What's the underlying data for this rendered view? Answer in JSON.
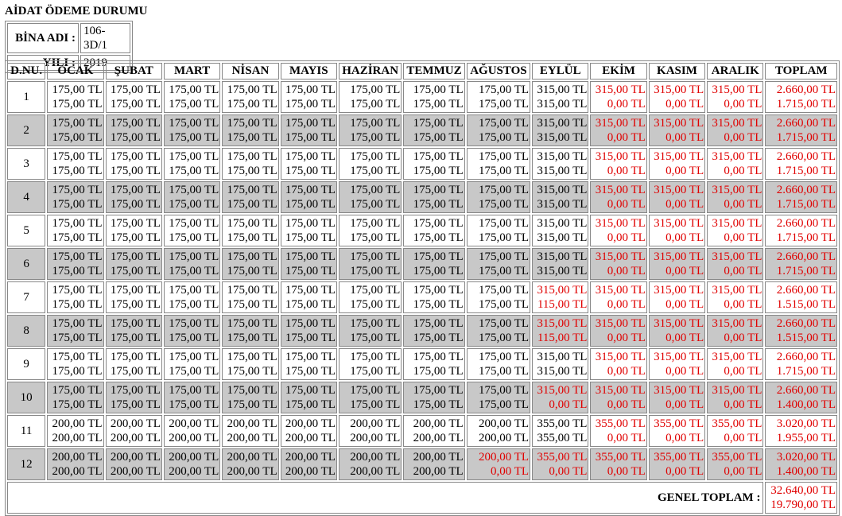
{
  "header": {
    "title": "AİDAT ÖDEME DURUMU",
    "building_label": "BİNA ADI :",
    "building": "106-3D/1",
    "year_label": "YILI :",
    "year": "2019"
  },
  "table": {
    "columns": [
      "D.NU.",
      "OCAK",
      "ŞUBAT",
      "MART",
      "NİSAN",
      "MAYIS",
      "HAZİRAN",
      "TEMMUZ",
      "AĞUSTOS",
      "EYLÜL",
      "EKİM",
      "KASIM",
      "ARALIK",
      "TOPLAM"
    ],
    "rows": [
      {
        "no": "1",
        "cells": [
          [
            "175,00 TL",
            "175,00 TL"
          ],
          [
            "175,00 TL",
            "175,00 TL"
          ],
          [
            "175,00 TL",
            "175,00 TL"
          ],
          [
            "175,00 TL",
            "175,00 TL"
          ],
          [
            "175,00 TL",
            "175,00 TL"
          ],
          [
            "175,00 TL",
            "175,00 TL"
          ],
          [
            "175,00 TL",
            "175,00 TL"
          ],
          [
            "175,00 TL",
            "175,00 TL"
          ],
          [
            "315,00 TL",
            "315,00 TL"
          ],
          [
            "315,00 TL",
            "0,00 TL"
          ],
          [
            "315,00 TL",
            "0,00 TL"
          ],
          [
            "315,00 TL",
            "0,00 TL"
          ],
          [
            "2.660,00 TL",
            "1.715,00 TL"
          ]
        ]
      },
      {
        "no": "2",
        "cells": [
          [
            "175,00 TL",
            "175,00 TL"
          ],
          [
            "175,00 TL",
            "175,00 TL"
          ],
          [
            "175,00 TL",
            "175,00 TL"
          ],
          [
            "175,00 TL",
            "175,00 TL"
          ],
          [
            "175,00 TL",
            "175,00 TL"
          ],
          [
            "175,00 TL",
            "175,00 TL"
          ],
          [
            "175,00 TL",
            "175,00 TL"
          ],
          [
            "175,00 TL",
            "175,00 TL"
          ],
          [
            "315,00 TL",
            "315,00 TL"
          ],
          [
            "315,00 TL",
            "0,00 TL"
          ],
          [
            "315,00 TL",
            "0,00 TL"
          ],
          [
            "315,00 TL",
            "0,00 TL"
          ],
          [
            "2.660,00 TL",
            "1.715,00 TL"
          ]
        ]
      },
      {
        "no": "3",
        "cells": [
          [
            "175,00 TL",
            "175,00 TL"
          ],
          [
            "175,00 TL",
            "175,00 TL"
          ],
          [
            "175,00 TL",
            "175,00 TL"
          ],
          [
            "175,00 TL",
            "175,00 TL"
          ],
          [
            "175,00 TL",
            "175,00 TL"
          ],
          [
            "175,00 TL",
            "175,00 TL"
          ],
          [
            "175,00 TL",
            "175,00 TL"
          ],
          [
            "175,00 TL",
            "175,00 TL"
          ],
          [
            "315,00 TL",
            "315,00 TL"
          ],
          [
            "315,00 TL",
            "0,00 TL"
          ],
          [
            "315,00 TL",
            "0,00 TL"
          ],
          [
            "315,00 TL",
            "0,00 TL"
          ],
          [
            "2.660,00 TL",
            "1.715,00 TL"
          ]
        ]
      },
      {
        "no": "4",
        "cells": [
          [
            "175,00 TL",
            "175,00 TL"
          ],
          [
            "175,00 TL",
            "175,00 TL"
          ],
          [
            "175,00 TL",
            "175,00 TL"
          ],
          [
            "175,00 TL",
            "175,00 TL"
          ],
          [
            "175,00 TL",
            "175,00 TL"
          ],
          [
            "175,00 TL",
            "175,00 TL"
          ],
          [
            "175,00 TL",
            "175,00 TL"
          ],
          [
            "175,00 TL",
            "175,00 TL"
          ],
          [
            "315,00 TL",
            "315,00 TL"
          ],
          [
            "315,00 TL",
            "0,00 TL"
          ],
          [
            "315,00 TL",
            "0,00 TL"
          ],
          [
            "315,00 TL",
            "0,00 TL"
          ],
          [
            "2.660,00 TL",
            "1.715,00 TL"
          ]
        ]
      },
      {
        "no": "5",
        "cells": [
          [
            "175,00 TL",
            "175,00 TL"
          ],
          [
            "175,00 TL",
            "175,00 TL"
          ],
          [
            "175,00 TL",
            "175,00 TL"
          ],
          [
            "175,00 TL",
            "175,00 TL"
          ],
          [
            "175,00 TL",
            "175,00 TL"
          ],
          [
            "175,00 TL",
            "175,00 TL"
          ],
          [
            "175,00 TL",
            "175,00 TL"
          ],
          [
            "175,00 TL",
            "175,00 TL"
          ],
          [
            "315,00 TL",
            "315,00 TL"
          ],
          [
            "315,00 TL",
            "0,00 TL"
          ],
          [
            "315,00 TL",
            "0,00 TL"
          ],
          [
            "315,00 TL",
            "0,00 TL"
          ],
          [
            "2.660,00 TL",
            "1.715,00 TL"
          ]
        ]
      },
      {
        "no": "6",
        "cells": [
          [
            "175,00 TL",
            "175,00 TL"
          ],
          [
            "175,00 TL",
            "175,00 TL"
          ],
          [
            "175,00 TL",
            "175,00 TL"
          ],
          [
            "175,00 TL",
            "175,00 TL"
          ],
          [
            "175,00 TL",
            "175,00 TL"
          ],
          [
            "175,00 TL",
            "175,00 TL"
          ],
          [
            "175,00 TL",
            "175,00 TL"
          ],
          [
            "175,00 TL",
            "175,00 TL"
          ],
          [
            "315,00 TL",
            "315,00 TL"
          ],
          [
            "315,00 TL",
            "0,00 TL"
          ],
          [
            "315,00 TL",
            "0,00 TL"
          ],
          [
            "315,00 TL",
            "0,00 TL"
          ],
          [
            "2.660,00 TL",
            "1.715,00 TL"
          ]
        ]
      },
      {
        "no": "7",
        "cells": [
          [
            "175,00 TL",
            "175,00 TL"
          ],
          [
            "175,00 TL",
            "175,00 TL"
          ],
          [
            "175,00 TL",
            "175,00 TL"
          ],
          [
            "175,00 TL",
            "175,00 TL"
          ],
          [
            "175,00 TL",
            "175,00 TL"
          ],
          [
            "175,00 TL",
            "175,00 TL"
          ],
          [
            "175,00 TL",
            "175,00 TL"
          ],
          [
            "175,00 TL",
            "175,00 TL"
          ],
          [
            "315,00 TL",
            "115,00 TL"
          ],
          [
            "315,00 TL",
            "0,00 TL"
          ],
          [
            "315,00 TL",
            "0,00 TL"
          ],
          [
            "315,00 TL",
            "0,00 TL"
          ],
          [
            "2.660,00 TL",
            "1.515,00 TL"
          ]
        ]
      },
      {
        "no": "8",
        "cells": [
          [
            "175,00 TL",
            "175,00 TL"
          ],
          [
            "175,00 TL",
            "175,00 TL"
          ],
          [
            "175,00 TL",
            "175,00 TL"
          ],
          [
            "175,00 TL",
            "175,00 TL"
          ],
          [
            "175,00 TL",
            "175,00 TL"
          ],
          [
            "175,00 TL",
            "175,00 TL"
          ],
          [
            "175,00 TL",
            "175,00 TL"
          ],
          [
            "175,00 TL",
            "175,00 TL"
          ],
          [
            "315,00 TL",
            "115,00 TL"
          ],
          [
            "315,00 TL",
            "0,00 TL"
          ],
          [
            "315,00 TL",
            "0,00 TL"
          ],
          [
            "315,00 TL",
            "0,00 TL"
          ],
          [
            "2.660,00 TL",
            "1.515,00 TL"
          ]
        ]
      },
      {
        "no": "9",
        "cells": [
          [
            "175,00 TL",
            "175,00 TL"
          ],
          [
            "175,00 TL",
            "175,00 TL"
          ],
          [
            "175,00 TL",
            "175,00 TL"
          ],
          [
            "175,00 TL",
            "175,00 TL"
          ],
          [
            "175,00 TL",
            "175,00 TL"
          ],
          [
            "175,00 TL",
            "175,00 TL"
          ],
          [
            "175,00 TL",
            "175,00 TL"
          ],
          [
            "175,00 TL",
            "175,00 TL"
          ],
          [
            "315,00 TL",
            "315,00 TL"
          ],
          [
            "315,00 TL",
            "0,00 TL"
          ],
          [
            "315,00 TL",
            "0,00 TL"
          ],
          [
            "315,00 TL",
            "0,00 TL"
          ],
          [
            "2.660,00 TL",
            "1.715,00 TL"
          ]
        ]
      },
      {
        "no": "10",
        "cells": [
          [
            "175,00 TL",
            "175,00 TL"
          ],
          [
            "175,00 TL",
            "175,00 TL"
          ],
          [
            "175,00 TL",
            "175,00 TL"
          ],
          [
            "175,00 TL",
            "175,00 TL"
          ],
          [
            "175,00 TL",
            "175,00 TL"
          ],
          [
            "175,00 TL",
            "175,00 TL"
          ],
          [
            "175,00 TL",
            "175,00 TL"
          ],
          [
            "175,00 TL",
            "175,00 TL"
          ],
          [
            "315,00 TL",
            "0,00 TL"
          ],
          [
            "315,00 TL",
            "0,00 TL"
          ],
          [
            "315,00 TL",
            "0,00 TL"
          ],
          [
            "315,00 TL",
            "0,00 TL"
          ],
          [
            "2.660,00 TL",
            "1.400,00 TL"
          ]
        ]
      },
      {
        "no": "11",
        "cells": [
          [
            "200,00 TL",
            "200,00 TL"
          ],
          [
            "200,00 TL",
            "200,00 TL"
          ],
          [
            "200,00 TL",
            "200,00 TL"
          ],
          [
            "200,00 TL",
            "200,00 TL"
          ],
          [
            "200,00 TL",
            "200,00 TL"
          ],
          [
            "200,00 TL",
            "200,00 TL"
          ],
          [
            "200,00 TL",
            "200,00 TL"
          ],
          [
            "200,00 TL",
            "200,00 TL"
          ],
          [
            "355,00 TL",
            "355,00 TL"
          ],
          [
            "355,00 TL",
            "0,00 TL"
          ],
          [
            "355,00 TL",
            "0,00 TL"
          ],
          [
            "355,00 TL",
            "0,00 TL"
          ],
          [
            "3.020,00 TL",
            "1.955,00 TL"
          ]
        ]
      },
      {
        "no": "12",
        "cells": [
          [
            "200,00 TL",
            "200,00 TL"
          ],
          [
            "200,00 TL",
            "200,00 TL"
          ],
          [
            "200,00 TL",
            "200,00 TL"
          ],
          [
            "200,00 TL",
            "200,00 TL"
          ],
          [
            "200,00 TL",
            "200,00 TL"
          ],
          [
            "200,00 TL",
            "200,00 TL"
          ],
          [
            "200,00 TL",
            "200,00 TL"
          ],
          [
            "200,00 TL",
            "0,00 TL"
          ],
          [
            "355,00 TL",
            "0,00 TL"
          ],
          [
            "355,00 TL",
            "0,00 TL"
          ],
          [
            "355,00 TL",
            "0,00 TL"
          ],
          [
            "355,00 TL",
            "0,00 TL"
          ],
          [
            "3.020,00 TL",
            "1.400,00 TL"
          ]
        ]
      }
    ],
    "total_label": "GENEL TOPLAM :",
    "total": [
      "32.640,00 TL",
      "19.790,00 TL"
    ]
  }
}
